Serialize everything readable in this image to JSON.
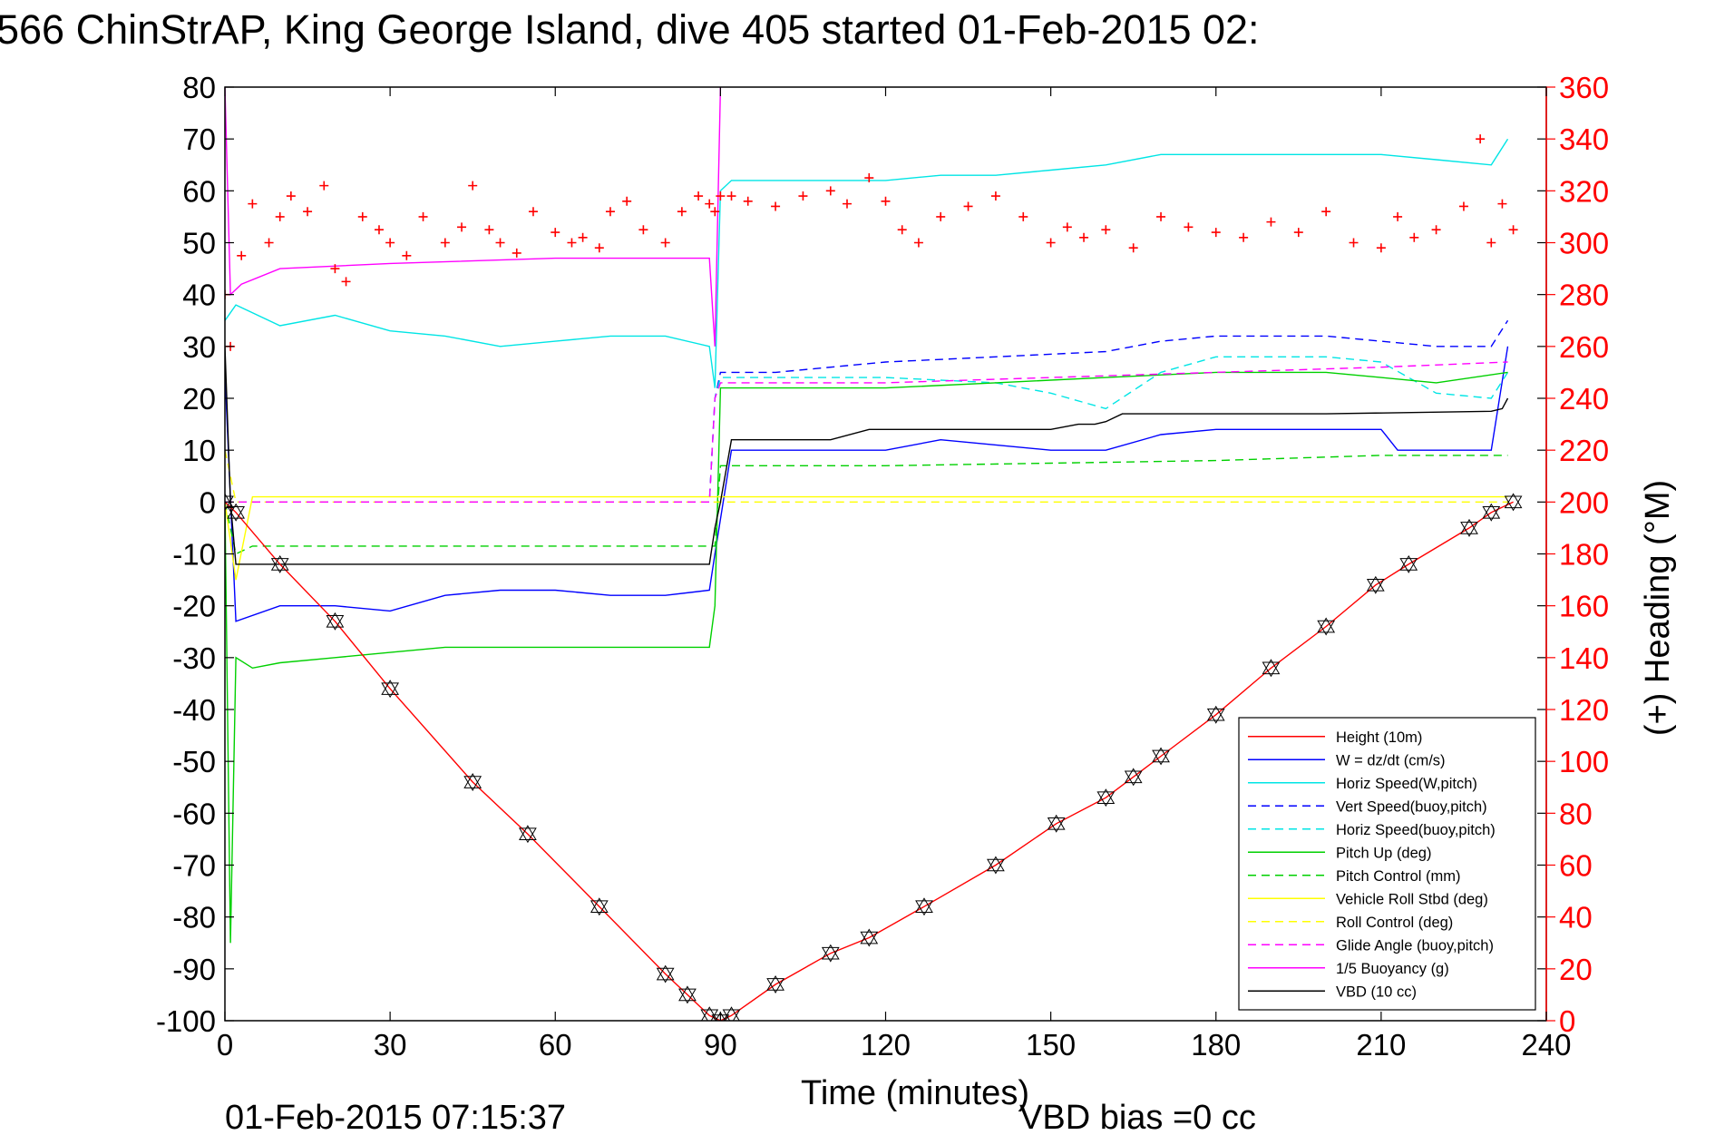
{
  "chart_data": {
    "type": "line",
    "title": "566 ChinStrAP, King George Island, dive 405 started 01-Feb-2015 02:",
    "xlabel": "Time (minutes)",
    "ylabel_right": "(+) Heading (°M)",
    "footer_left": "01-Feb-2015 07:15:37",
    "footer_right": "VBD bias =0 cc",
    "xlim": [
      0,
      240
    ],
    "ylim_left": [
      -100,
      80
    ],
    "ylim_right": [
      0,
      360
    ],
    "xticks": [
      0,
      30,
      60,
      90,
      120,
      150,
      180,
      210,
      240
    ],
    "yticks_left": [
      80,
      70,
      60,
      50,
      40,
      30,
      20,
      10,
      0,
      -10,
      -20,
      -30,
      -40,
      -50,
      -60,
      -70,
      -80,
      -90,
      -100
    ],
    "yticks_right": [
      360,
      340,
      320,
      300,
      280,
      260,
      240,
      220,
      200,
      180,
      160,
      140,
      120,
      100,
      80,
      60,
      40,
      20,
      0
    ],
    "grid": false,
    "legend_position": "bottom-right",
    "colors": {
      "axis_right": "#ff0000"
    },
    "series": [
      {
        "name": "Height (10m)",
        "color": "#ff0000",
        "dash": "solid",
        "marker": "triangles",
        "x": [
          0,
          2,
          10,
          20,
          30,
          45,
          55,
          68,
          80,
          84,
          88,
          90,
          92,
          100,
          110,
          117,
          127,
          140,
          151,
          160,
          165,
          170,
          180,
          190,
          200,
          209,
          215,
          226,
          230,
          234
        ],
        "y": [
          0,
          -2,
          -12,
          -23,
          -36,
          -54,
          -64,
          -78,
          -91,
          -95,
          -99,
          -100,
          -99,
          -93,
          -87,
          -84,
          -78,
          -70,
          -62,
          -57,
          -53,
          -49,
          -41,
          -32,
          -24,
          -16,
          -12,
          -5,
          -2,
          0
        ]
      },
      {
        "name": "W = dz/dt (cm/s)",
        "color": "#0000ff",
        "dash": "solid",
        "x": [
          0,
          2,
          10,
          20,
          30,
          40,
          50,
          60,
          70,
          80,
          88,
          89,
          92,
          100,
          110,
          120,
          130,
          140,
          150,
          160,
          170,
          180,
          190,
          200,
          210,
          213,
          220,
          230,
          233
        ],
        "y": [
          25,
          -23,
          -20,
          -20,
          -21,
          -18,
          -17,
          -17,
          -18,
          -18,
          -17,
          -10,
          10,
          10,
          10,
          10,
          12,
          11,
          10,
          10,
          13,
          14,
          14,
          14,
          14,
          10,
          10,
          10,
          30
        ]
      },
      {
        "name": "Horiz Speed(W,pitch)",
        "color": "#00e5e5",
        "dash": "solid",
        "x": [
          0,
          2,
          10,
          20,
          30,
          40,
          50,
          60,
          70,
          80,
          88,
          89,
          90,
          92,
          100,
          110,
          120,
          130,
          140,
          150,
          160,
          170,
          180,
          190,
          200,
          210,
          220,
          230,
          233
        ],
        "y": [
          35,
          38,
          34,
          36,
          33,
          32,
          30,
          31,
          32,
          32,
          30,
          22,
          60,
          62,
          62,
          62,
          62,
          63,
          63,
          64,
          65,
          67,
          67,
          67,
          67,
          67,
          66,
          65,
          70
        ]
      },
      {
        "name": "Vert Speed(buoy,pitch)",
        "color": "#0000ff",
        "dash": "dashed",
        "x": [
          0,
          2,
          88,
          89,
          90,
          100,
          120,
          140,
          160,
          170,
          180,
          200,
          220,
          230,
          233
        ],
        "y": [
          0,
          0,
          0,
          20,
          25,
          25,
          27,
          28,
          29,
          31,
          32,
          32,
          30,
          30,
          35
        ]
      },
      {
        "name": "Horiz Speed(buoy,pitch)",
        "color": "#00e5e5",
        "dash": "dashed",
        "x": [
          0,
          2,
          88,
          89,
          90,
          100,
          120,
          140,
          150,
          160,
          170,
          180,
          200,
          210,
          220,
          230,
          233
        ],
        "y": [
          0,
          0,
          0,
          20,
          24,
          24,
          24,
          23,
          21,
          18,
          25,
          28,
          28,
          27,
          21,
          20,
          25
        ]
      },
      {
        "name": "Pitch Up (deg)",
        "color": "#00d000",
        "dash": "solid",
        "x": [
          0,
          1,
          2,
          5,
          10,
          20,
          30,
          40,
          50,
          60,
          70,
          80,
          88,
          89,
          90,
          100,
          120,
          140,
          160,
          180,
          200,
          210,
          220,
          233
        ],
        "y": [
          0,
          -85,
          -30,
          -32,
          -31,
          -30,
          -29,
          -28,
          -28,
          -28,
          -28,
          -28,
          -28,
          -20,
          22,
          22,
          22,
          23,
          24,
          25,
          25,
          24,
          23,
          25
        ]
      },
      {
        "name": "Pitch Control (mm)",
        "color": "#00d000",
        "dash": "dashed",
        "x": [
          0,
          2,
          5,
          88,
          89,
          90,
          120,
          150,
          180,
          210,
          233
        ],
        "y": [
          0,
          -10,
          -8.5,
          -8.5,
          -8.5,
          7,
          7,
          7.5,
          8,
          9,
          9
        ]
      },
      {
        "name": "Vehicle Roll Stbd (deg)",
        "color": "#ffff00",
        "dash": "solid",
        "x": [
          0,
          2,
          5,
          30,
          60,
          88,
          90,
          120,
          150,
          180,
          210,
          233
        ],
        "y": [
          0,
          -15,
          1,
          1,
          1,
          1,
          1,
          1,
          1,
          1,
          1,
          1
        ]
      },
      {
        "name": "Roll Control (deg)",
        "color": "#ffff00",
        "dash": "dashed",
        "x": [
          0,
          1,
          2,
          88,
          90,
          233
        ],
        "y": [
          10,
          5,
          0,
          0,
          0,
          0
        ]
      },
      {
        "name": "Glide Angle (buoy,pitch)",
        "color": "#ff00ff",
        "dash": "dashed",
        "x": [
          0,
          2,
          88,
          89,
          90,
          120,
          150,
          180,
          210,
          233
        ],
        "y": [
          0,
          0,
          0,
          20,
          23,
          23,
          24,
          25,
          26,
          27
        ]
      },
      {
        "name": "1/5 Buoyancy (g)",
        "color": "#ff00ff",
        "dash": "solid",
        "x": [
          0,
          1,
          3,
          10,
          30,
          60,
          88,
          89,
          90
        ],
        "y": [
          80,
          40,
          42,
          45,
          46,
          47,
          47,
          30,
          80
        ]
      },
      {
        "name": "VBD (10 cc)",
        "color": "#000000",
        "dash": "solid",
        "x": [
          0,
          1,
          2,
          88,
          89,
          90,
          92,
          110,
          117,
          140,
          150,
          155,
          158,
          160,
          163,
          165,
          170,
          200,
          230,
          232,
          233
        ],
        "y": [
          30,
          0,
          -12,
          -12,
          -5,
          0,
          12,
          12,
          14,
          14,
          14,
          15,
          15,
          15.5,
          17,
          17,
          17,
          17,
          17.5,
          18,
          20
        ]
      },
      {
        "name": "Heading",
        "color": "#ff0000",
        "dash": "none",
        "marker": "plus",
        "axis": "right",
        "x": [
          0,
          1,
          3,
          5,
          8,
          10,
          12,
          15,
          18,
          20,
          22,
          25,
          28,
          30,
          33,
          36,
          40,
          43,
          45,
          48,
          50,
          53,
          56,
          60,
          63,
          65,
          68,
          70,
          73,
          76,
          80,
          83,
          86,
          88,
          89,
          90,
          92,
          95,
          100,
          105,
          110,
          113,
          117,
          120,
          123,
          126,
          130,
          135,
          140,
          145,
          150,
          153,
          156,
          160,
          165,
          170,
          175,
          180,
          185,
          190,
          195,
          200,
          205,
          210,
          213,
          216,
          220,
          225,
          228,
          230,
          232,
          234
        ],
        "y": [
          280,
          260,
          295,
          315,
          300,
          310,
          318,
          312,
          322,
          290,
          285,
          310,
          305,
          300,
          295,
          310,
          300,
          306,
          322,
          305,
          300,
          296,
          312,
          304,
          300,
          302,
          298,
          312,
          316,
          305,
          300,
          312,
          318,
          315,
          312,
          318,
          318,
          316,
          314,
          318,
          320,
          315,
          325,
          316,
          305,
          300,
          310,
          314,
          318,
          310,
          300,
          306,
          302,
          305,
          298,
          310,
          306,
          304,
          302,
          308,
          304,
          312,
          300,
          298,
          310,
          302,
          305,
          314,
          340,
          300,
          315,
          305
        ]
      }
    ]
  }
}
